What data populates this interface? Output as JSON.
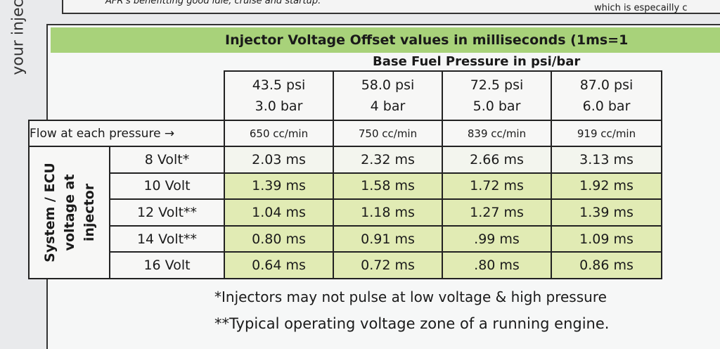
{
  "top_note": {
    "left": "AFR's benefitting good idle, cruise and startup.",
    "right": "which is especailly c"
  },
  "side_text": "your injec",
  "title": "Injector Voltage Offset values in milliseconds (1ms=1",
  "subtitle": "Base Fuel Pressure in psi/bar",
  "columns": [
    {
      "psi": "43.5 psi",
      "bar": "3.0 bar",
      "flow": "650 cc/min"
    },
    {
      "psi": "58.0 psi",
      "bar": "4 bar",
      "flow": "750 cc/min"
    },
    {
      "psi": "72.5 psi",
      "bar": "5.0 bar",
      "flow": "839 cc/min"
    },
    {
      "psi": "87.0 psi",
      "bar": "6.0 bar",
      "flow": "919 cc/min"
    }
  ],
  "flow_label": "Flow at each pressure →",
  "row_group_label": [
    "System / ECU",
    "voltage at",
    "injector"
  ],
  "rows": [
    {
      "label": "8 Volt*",
      "values": [
        "2.03 ms",
        "2.32 ms",
        "2.66 ms",
        "3.13 ms"
      ]
    },
    {
      "label": "10 Volt",
      "values": [
        "1.39 ms",
        "1.58 ms",
        "1.72 ms",
        "1.92 ms"
      ]
    },
    {
      "label": "12 Volt**",
      "values": [
        "1.04 ms",
        "1.18 ms",
        "1.27 ms",
        "1.39 ms"
      ]
    },
    {
      "label": "14 Volt**",
      "values": [
        "0.80 ms",
        "0.91 ms",
        ".99 ms",
        "1.09 ms"
      ]
    },
    {
      "label": "16 Volt",
      "values": [
        "0.64 ms",
        "0.72 ms",
        ".80 ms",
        "0.86 ms"
      ]
    }
  ],
  "notes": [
    "*Injectors may not pulse at low voltage & high pressure",
    "**Typical operating voltage zone of a running engine."
  ]
}
